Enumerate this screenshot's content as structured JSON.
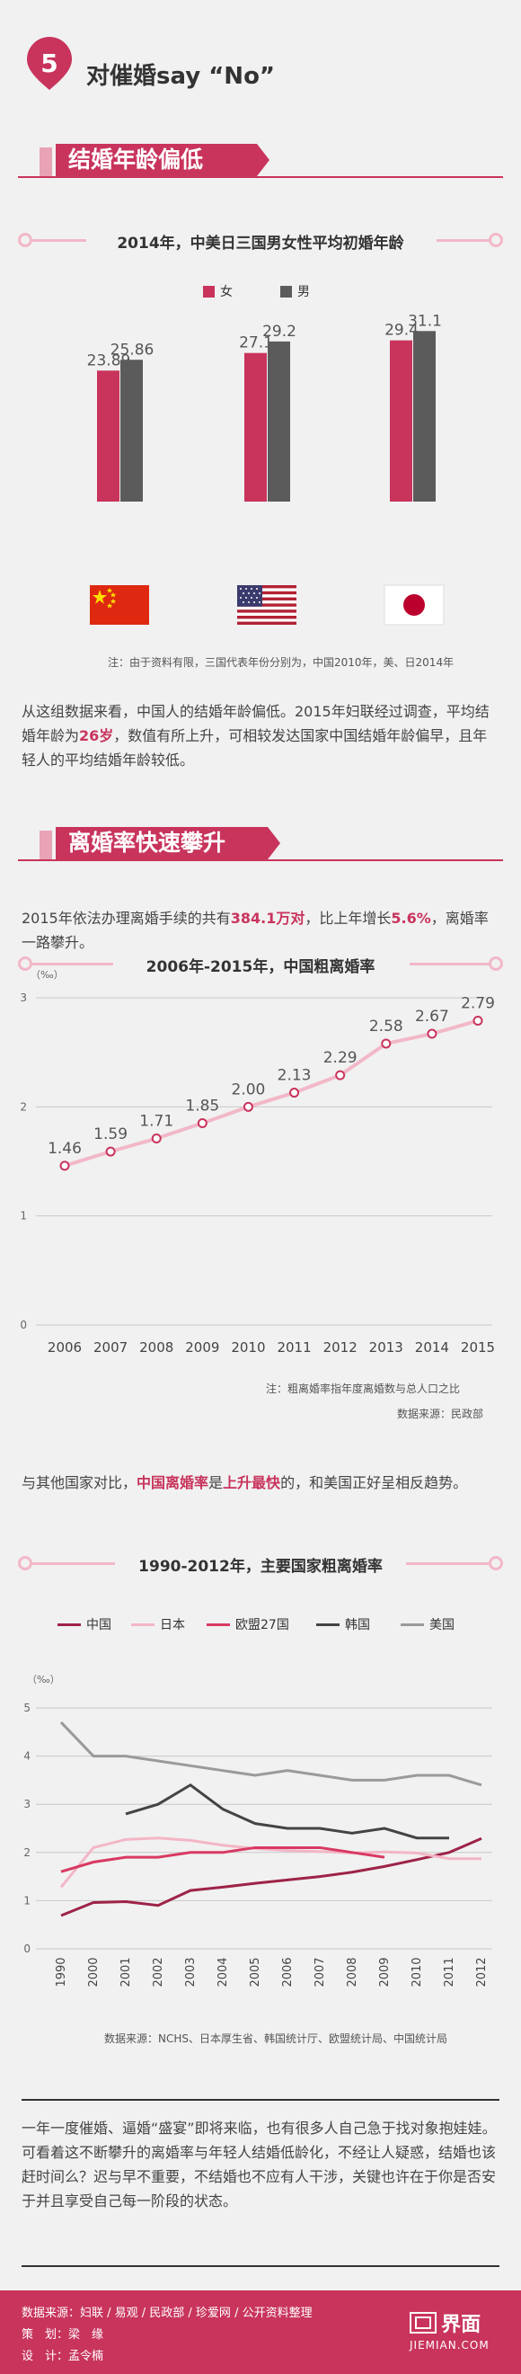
{
  "header": {
    "number": "5",
    "title": "对催婚say “No”"
  },
  "section1": {
    "heading": "结婚年龄偏低"
  },
  "chart_data": [
    {
      "type": "bar",
      "title": "2014年，中美日三国男女性平均初婚年龄",
      "categories": [
        "中国",
        "美国",
        "日本"
      ],
      "series": [
        {
          "name": "女",
          "values": [
            23.89,
            27.1,
            29.4
          ],
          "color": "#c8345c"
        },
        {
          "name": "男",
          "values": [
            25.86,
            29.2,
            31.1
          ],
          "color": "#5b5b5b"
        }
      ],
      "note": "注：由于资料有限，三国代表年份分别为，中国2010年，美、日2014年"
    },
    {
      "type": "line",
      "title": "2006年-2015年，中国粗离婚率",
      "unit": "（‰）",
      "x": [
        "2006",
        "2007",
        "2008",
        "2009",
        "2010",
        "2011",
        "2012",
        "2013",
        "2014",
        "2015"
      ],
      "values": [
        1.46,
        1.59,
        1.71,
        1.85,
        2.0,
        2.13,
        2.29,
        2.58,
        2.67,
        2.79
      ],
      "value_labels": [
        "1.46",
        "1.59",
        "1.71",
        "1.85",
        "2.00",
        "2.13",
        "2.29",
        "2.58",
        "2.67",
        "2.79"
      ],
      "ylim": [
        0,
        3
      ],
      "yticks": [
        "0",
        "1",
        "2",
        "3"
      ],
      "note": "注：粗离婚率指年度离婚数与总人口之比",
      "source": "数据来源：民政部"
    },
    {
      "type": "line",
      "title": "1990-2012年，主要国家粗离婚率",
      "unit": "（‰）",
      "x": [
        "1990",
        "2000",
        "2001",
        "2002",
        "2003",
        "2004",
        "2005",
        "2006",
        "2007",
        "2008",
        "2009",
        "2010",
        "2011",
        "2012"
      ],
      "ylim": [
        0,
        5
      ],
      "yticks": [
        "0",
        "1",
        "2",
        "3",
        "4",
        "5"
      ],
      "series": [
        {
          "name": "中国",
          "color": "#9e2348",
          "values": [
            0.69,
            0.96,
            0.98,
            0.9,
            1.21,
            1.28,
            1.36,
            1.43,
            1.5,
            1.59,
            1.71,
            1.85,
            2.0,
            2.29
          ]
        },
        {
          "name": "日本",
          "color": "#f3b6c6",
          "values": [
            1.28,
            2.1,
            2.27,
            2.3,
            2.25,
            2.15,
            2.08,
            2.04,
            2.02,
            1.99,
            2.01,
            1.99,
            1.87,
            1.87
          ]
        },
        {
          "name": "欧盟27国",
          "color": "#d83a62",
          "values": [
            1.6,
            1.8,
            1.9,
            1.9,
            2.0,
            2.0,
            2.1,
            2.1,
            2.1,
            2.0,
            1.9,
            null,
            null,
            null
          ]
        },
        {
          "name": "韩国",
          "color": "#444444",
          "values": [
            null,
            null,
            2.8,
            3.0,
            3.4,
            2.9,
            2.6,
            2.5,
            2.5,
            2.4,
            2.5,
            2.3,
            2.3,
            null
          ]
        },
        {
          "name": "美国",
          "color": "#9a9a9a",
          "values": [
            4.7,
            4.0,
            4.0,
            3.9,
            3.8,
            3.7,
            3.6,
            3.7,
            3.6,
            3.5,
            3.5,
            3.6,
            3.6,
            3.4
          ]
        }
      ],
      "source": "数据来源：NCHS、日本厚生省、韩国统计厅、欧盟统计局、中国统计局"
    }
  ],
  "para1": {
    "a": "从这组数据来看，中国人的结婚年龄偏低。2015年妇联经过调查，平均结婚年龄为",
    "hl": "26岁",
    "b": "，数值有所上升，可相较发达国家中国结婚年龄偏早，且年轻人的平均结婚年龄较低。"
  },
  "section2": {
    "heading": "离婚率快速攀升"
  },
  "para2": {
    "a": "2015年依法办理离婚手续的共有",
    "hl1": "384.1万对",
    "b": "，比上年增长",
    "hl2": "5.6%",
    "c": "，离婚率一路攀升。"
  },
  "para3": {
    "a": "与其他国家对比，",
    "hl1": "中国离婚率",
    "b": "是",
    "hl2": "上升最快",
    "c": "的，和美国正好呈相反趋势。"
  },
  "para4": {
    "text": "一年一度催婚、逼婚“盛宴”即将来临，也有很多人自己急于找对象抱娃娃。可看着这不断攀升的离婚率与年轻人结婚低龄化，不经让人疑惑，结婚也该赶时间么？迟与早不重要，不结婚也不应有人干涉，关键也许在于你是否安于并且享受自己每一阶段的状态。"
  },
  "footer": {
    "source": "数据来源：妇联 / 易观 / 民政部 / 珍爱网 / 公开资料整理",
    "planner": "策　划：梁　缘",
    "designer": "设　计：孟令楠",
    "logo_cn": "界面",
    "logo_en": "JIEMIAN.COM"
  },
  "colors": {
    "accent": "#c8345c",
    "dark_bar": "#5b5b5b",
    "line_pink": "#f2b8c8"
  }
}
